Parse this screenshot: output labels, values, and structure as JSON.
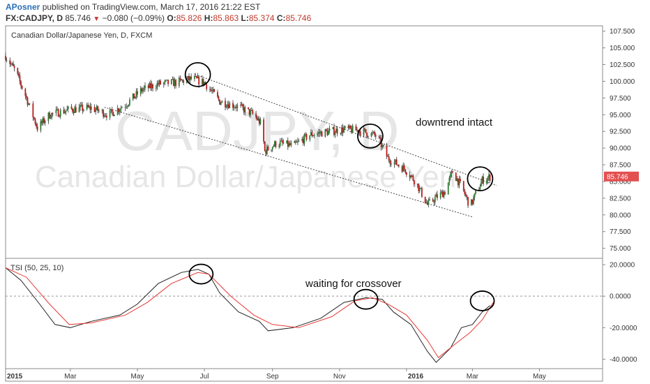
{
  "header": {
    "author": "APosner",
    "published": "published on TradingView.com, March 17, 2016 21:22 EST"
  },
  "quote": {
    "symbol": "FX:CADJPY, D",
    "last": "85.746",
    "change": "−0.080 (−0.09%)",
    "o_label": "O:",
    "o_val": "85.826",
    "h_label": "H:",
    "h_val": "85.863",
    "l_label": "L:",
    "l_val": "85.374",
    "c_label": "C:",
    "c_val": "85.746"
  },
  "colors": {
    "up": "#2e7d32",
    "down": "#b71c1c",
    "tsi": "#222222",
    "signal": "#e53935",
    "price_tag": "#e35050"
  },
  "chart_data": [
    {
      "type": "candlestick",
      "title": "Canadian Dollar/Japanese Yen, D, FXCM",
      "watermark_symbol": "CADJPY, D",
      "watermark_name": "Canadian Dollar/Japanese Yen",
      "x_ticks": [
        "2015",
        "Mar",
        "May",
        "Jul",
        "Sep",
        "Nov",
        "2016",
        "Mar",
        "May"
      ],
      "y_ticks": [
        "107.500",
        "105.000",
        "102.500",
        "100.000",
        "97.500",
        "95.000",
        "92.500",
        "90.000",
        "87.500",
        "85.000",
        "82.500",
        "80.000",
        "77.500",
        "75.000"
      ],
      "ylim": [
        73.5,
        108.3
      ],
      "last_price_label": "85.746",
      "close_path": [
        [
          "2015-01-01",
          103.8
        ],
        [
          "2015-01-10",
          101.5
        ],
        [
          "2015-01-20",
          97.5
        ],
        [
          "2015-01-30",
          93.0
        ],
        [
          "2015-02-10",
          95.0
        ],
        [
          "2015-03-01",
          95.8
        ],
        [
          "2015-03-20",
          96.0
        ],
        [
          "2015-04-05",
          95.0
        ],
        [
          "2015-04-20",
          96.5
        ],
        [
          "2015-05-05",
          98.7
        ],
        [
          "2015-05-20",
          99.6
        ],
        [
          "2015-06-05",
          99.8
        ],
        [
          "2015-06-20",
          100.4
        ],
        [
          "2015-07-01",
          99.8
        ],
        [
          "2015-07-15",
          97.0
        ],
        [
          "2015-08-01",
          96.2
        ],
        [
          "2015-08-15",
          95.0
        ],
        [
          "2015-08-22",
          93.5
        ],
        [
          "2015-08-25",
          89.5
        ],
        [
          "2015-09-05",
          90.8
        ],
        [
          "2015-09-20",
          90.3
        ],
        [
          "2015-10-05",
          92.0
        ],
        [
          "2015-10-20",
          92.4
        ],
        [
          "2015-11-05",
          92.8
        ],
        [
          "2015-11-20",
          92.6
        ],
        [
          "2015-12-05",
          91.8
        ],
        [
          "2015-12-15",
          88.5
        ],
        [
          "2015-12-31",
          86.8
        ],
        [
          "2016-01-10",
          84.8
        ],
        [
          "2016-01-20",
          81.5
        ],
        [
          "2016-01-27",
          82.5
        ],
        [
          "2016-02-05",
          83.5
        ],
        [
          "2016-02-12",
          86.5
        ],
        [
          "2016-02-20",
          84.2
        ],
        [
          "2016-02-28",
          81.3
        ],
        [
          "2016-03-05",
          83.5
        ],
        [
          "2016-03-10",
          85.2
        ],
        [
          "2016-03-17",
          85.7
        ]
      ],
      "trendlines": [
        {
          "from": [
            "2015-06-25",
            100.9
          ],
          "to": [
            "2016-03-23",
            84.4
          ]
        },
        {
          "from": [
            "2015-04-01",
            96.1
          ],
          "to": [
            "2016-03-01",
            79.7
          ]
        }
      ],
      "annotation": "downtrend intact"
    },
    {
      "type": "line",
      "title": "TSI (50, 25, 10)",
      "y_ticks": [
        "20.0000",
        "0.0000",
        "-20.0000",
        "-40.0000"
      ],
      "ylim": [
        -46,
        24
      ],
      "zero_line": 0,
      "series": [
        {
          "role": "tsi",
          "points": [
            [
              "2015-01-01",
              18
            ],
            [
              "2015-01-15",
              10
            ],
            [
              "2015-02-01",
              -5
            ],
            [
              "2015-02-15",
              -18
            ],
            [
              "2015-03-01",
              -20
            ],
            [
              "2015-03-20",
              -16
            ],
            [
              "2015-04-15",
              -12
            ],
            [
              "2015-05-01",
              -5
            ],
            [
              "2015-05-20",
              8
            ],
            [
              "2015-06-10",
              15
            ],
            [
              "2015-06-25",
              17
            ],
            [
              "2015-07-05",
              14
            ],
            [
              "2015-07-15",
              2
            ],
            [
              "2015-08-01",
              -10
            ],
            [
              "2015-08-20",
              -16
            ],
            [
              "2015-08-28",
              -22
            ],
            [
              "2015-09-20",
              -20
            ],
            [
              "2015-10-15",
              -14
            ],
            [
              "2015-11-05",
              -4
            ],
            [
              "2015-11-25",
              -1
            ],
            [
              "2015-12-10",
              -2
            ],
            [
              "2015-12-20",
              -10
            ],
            [
              "2016-01-05",
              -18
            ],
            [
              "2016-01-20",
              -35
            ],
            [
              "2016-01-28",
              -42
            ],
            [
              "2016-02-10",
              -33
            ],
            [
              "2016-02-20",
              -20
            ],
            [
              "2016-03-01",
              -18
            ],
            [
              "2016-03-10",
              -10
            ],
            [
              "2016-03-17",
              -6
            ]
          ]
        },
        {
          "role": "signal",
          "points": [
            [
              "2015-01-01",
              18
            ],
            [
              "2015-01-20",
              12
            ],
            [
              "2015-02-10",
              -5
            ],
            [
              "2015-02-28",
              -18
            ],
            [
              "2015-03-20",
              -17
            ],
            [
              "2015-04-20",
              -12
            ],
            [
              "2015-05-10",
              -4
            ],
            [
              "2015-06-01",
              8
            ],
            [
              "2015-06-25",
              15
            ],
            [
              "2015-07-05",
              14
            ],
            [
              "2015-07-25",
              0
            ],
            [
              "2015-08-15",
              -12
            ],
            [
              "2015-09-01",
              -18
            ],
            [
              "2015-09-25",
              -20
            ],
            [
              "2015-10-25",
              -13
            ],
            [
              "2015-11-15",
              -3
            ],
            [
              "2015-12-01",
              -1
            ],
            [
              "2015-12-15",
              -5
            ],
            [
              "2016-01-01",
              -12
            ],
            [
              "2016-01-20",
              -28
            ],
            [
              "2016-01-30",
              -39
            ],
            [
              "2016-02-15",
              -30
            ],
            [
              "2016-02-28",
              -23
            ],
            [
              "2016-03-10",
              -15
            ],
            [
              "2016-03-20",
              -4
            ]
          ]
        }
      ],
      "annotation": "waiting for crossover"
    }
  ],
  "circles": [
    {
      "center": [
        "2015-06-25",
        101.0
      ],
      "panel": 0
    },
    {
      "center": [
        "2015-11-29",
        91.8
      ],
      "panel": 0
    },
    {
      "center": [
        "2016-03-08",
        85.4
      ],
      "panel": 0
    },
    {
      "center": [
        "2015-06-28",
        14.0
      ],
      "panel": 1
    },
    {
      "center": [
        "2015-11-25",
        -2.0
      ],
      "panel": 1
    },
    {
      "center": [
        "2016-03-10",
        -3.0
      ],
      "panel": 1
    }
  ]
}
